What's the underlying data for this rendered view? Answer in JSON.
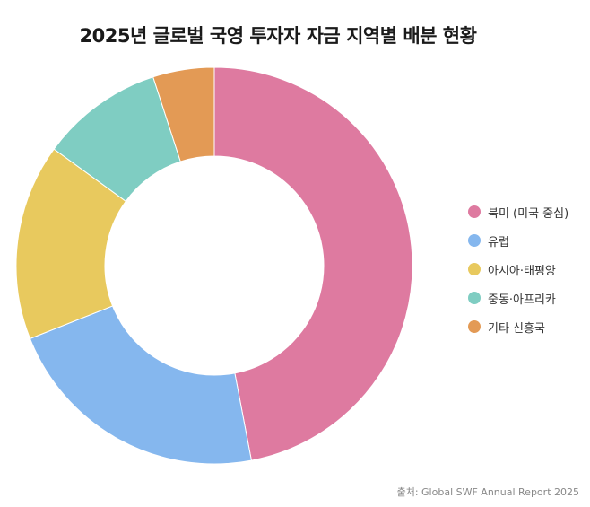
{
  "title": "2025년 글로벌 국영 투자자 자금 지역별 배분 현황",
  "source": "출처: Global SWF Annual Report 2025",
  "chart_data": {
    "type": "pie",
    "subtype": "donut",
    "title": "2025년 글로벌 국영 투자자 자금 지역별 배분 현황",
    "legend_position": "right",
    "slices": [
      {
        "label": "북미 (미국 중심)",
        "value": 47,
        "color": "#de7aa0"
      },
      {
        "label": "유럽",
        "value": 22,
        "color": "#85b7ee"
      },
      {
        "label": "아시아·태평양",
        "value": 16,
        "color": "#e8c95e"
      },
      {
        "label": "중동·아프리카",
        "value": 10,
        "color": "#7fcdc2"
      },
      {
        "label": "기타 신흥국",
        "value": 5,
        "color": "#e39a55"
      }
    ]
  }
}
